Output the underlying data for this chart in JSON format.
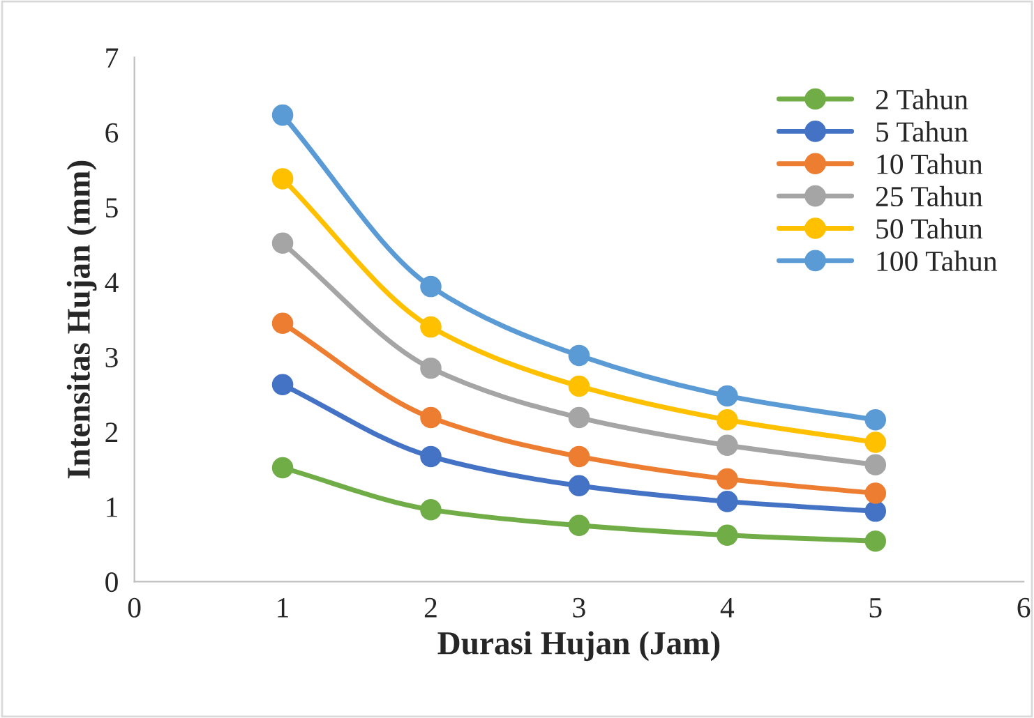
{
  "chart_data": {
    "type": "line",
    "xlabel": "Durasi Hujan (Jam)",
    "ylabel": "Intensitas Hujan (mm)",
    "x": [
      1,
      2,
      3,
      4,
      5
    ],
    "series": [
      {
        "name": "2 Tahun",
        "color": "#70ad47",
        "values": [
          1.52,
          0.96,
          0.75,
          0.62,
          0.54
        ]
      },
      {
        "name": "5 Tahun",
        "color": "#4472c4",
        "values": [
          2.63,
          1.67,
          1.28,
          1.07,
          0.94
        ]
      },
      {
        "name": "10 Tahun",
        "color": "#ed7d31",
        "values": [
          3.45,
          2.19,
          1.67,
          1.37,
          1.18
        ]
      },
      {
        "name": "25 Tahun",
        "color": "#a5a5a5",
        "values": [
          4.52,
          2.85,
          2.19,
          1.82,
          1.56
        ]
      },
      {
        "name": "50 Tahun",
        "color": "#ffc000",
        "values": [
          5.38,
          3.4,
          2.61,
          2.16,
          1.86
        ]
      },
      {
        "name": "100 Tahun",
        "color": "#5b9bd5",
        "values": [
          6.23,
          3.94,
          3.02,
          2.48,
          2.16
        ]
      }
    ],
    "xlim": [
      0,
      6
    ],
    "xticks": [
      0,
      1,
      2,
      3,
      4,
      5,
      6
    ],
    "ylim": [
      0,
      7
    ],
    "yticks": [
      0,
      1,
      2,
      3,
      4,
      5,
      6,
      7
    ],
    "marker": "circle",
    "line_style": "solid",
    "legend": "top right",
    "grid": false
  }
}
